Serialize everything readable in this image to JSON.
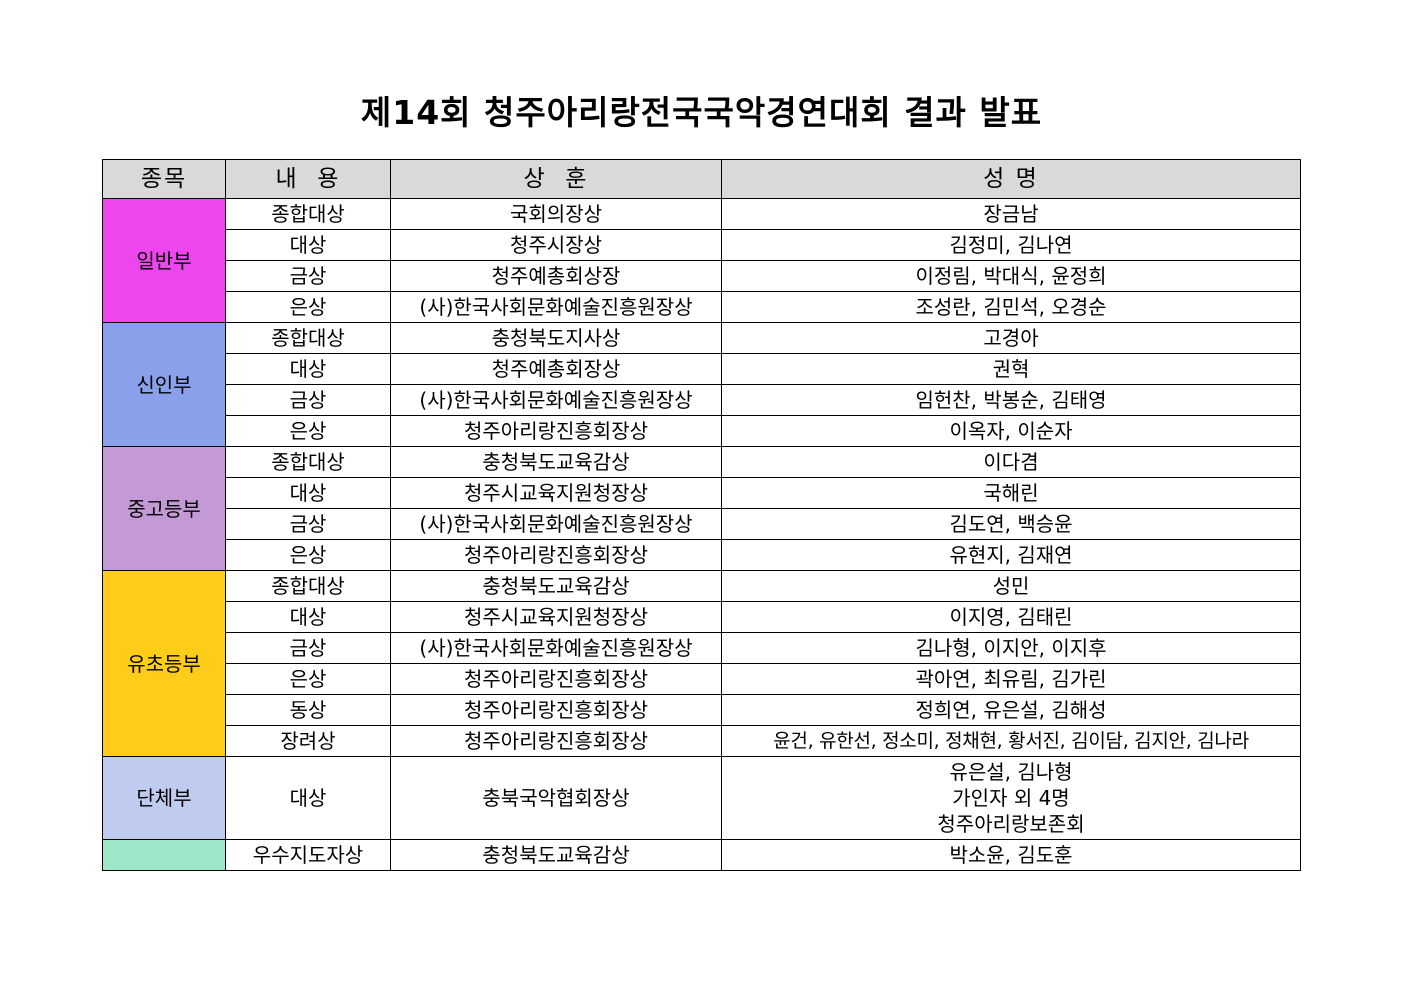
{
  "title": "제14회 청주아리랑전국국악경연대회 결과 발표",
  "headers": {
    "category": "종목",
    "content": "내  용",
    "award": "상  훈",
    "names": "성 명"
  },
  "colors": {
    "header_bg": "#d9d9d9",
    "general": "#ee45ee",
    "newcomer": "#8aa0ea",
    "secondary": "#c39ad6",
    "elementary": "#ffcc1a",
    "group": "#bfccf0",
    "teacher": "#9ee6c8"
  },
  "groups": [
    {
      "category": "일반부",
      "rows": [
        {
          "content": "종합대상",
          "award": "국회의장상",
          "names": "장금남"
        },
        {
          "content": "대상",
          "award": "청주시장상",
          "names": "김정미, 김나연"
        },
        {
          "content": "금상",
          "award": "청주예총회상장",
          "names": "이정림, 박대식, 윤정희"
        },
        {
          "content": "은상",
          "award": "(사)한국사회문화예술진흥원장상",
          "names": "조성란, 김민석, 오경순"
        }
      ]
    },
    {
      "category": "신인부",
      "rows": [
        {
          "content": "종합대상",
          "award": "충청북도지사상",
          "names": "고경아"
        },
        {
          "content": "대상",
          "award": "청주예총회장상",
          "names": "권혁"
        },
        {
          "content": "금상",
          "award": "(사)한국사회문화예술진흥원장상",
          "names": "임헌찬, 박봉순, 김태영"
        },
        {
          "content": "은상",
          "award": "청주아리랑진흥회장상",
          "names": "이옥자, 이순자"
        }
      ]
    },
    {
      "category": "중고등부",
      "rows": [
        {
          "content": "종합대상",
          "award": "충청북도교육감상",
          "names": "이다겸"
        },
        {
          "content": "대상",
          "award": "청주시교육지원청장상",
          "names": "국해린"
        },
        {
          "content": "금상",
          "award": "(사)한국사회문화예술진흥원장상",
          "names": "김도연, 백승윤"
        },
        {
          "content": "은상",
          "award": "청주아리랑진흥회장상",
          "names": "유현지, 김재연"
        }
      ]
    },
    {
      "category": "유초등부",
      "rows": [
        {
          "content": "종합대상",
          "award": "충청북도교육감상",
          "names": "성민"
        },
        {
          "content": "대상",
          "award": "청주시교육지원청장상",
          "names": "이지영, 김태린"
        },
        {
          "content": "금상",
          "award": "(사)한국사회문화예술진흥원장상",
          "names": "김나형, 이지안, 이지후"
        },
        {
          "content": "은상",
          "award": "청주아리랑진흥회장상",
          "names": "곽아연, 최유림, 김가린"
        },
        {
          "content": "동상",
          "award": "청주아리랑진흥회장상",
          "names": "정희연, 유은설, 김해성"
        },
        {
          "content": "장려상",
          "award": "청주아리랑진흥회장상",
          "names": "윤건, 유한선, 정소미, 정채현, 황서진, 김이담, 김지안, 김나라"
        }
      ]
    },
    {
      "category": "단체부",
      "rows": [
        {
          "content": "대상",
          "award": "충북국악협회장상",
          "names_lines": [
            "유은설, 김나형",
            "가인자 외 4명",
            "청주아리랑보존회"
          ]
        }
      ]
    },
    {
      "category": "",
      "rows": [
        {
          "content": "우수지도자상",
          "award": "충청북도교육감상",
          "names": "박소윤, 김도훈"
        }
      ]
    }
  ]
}
